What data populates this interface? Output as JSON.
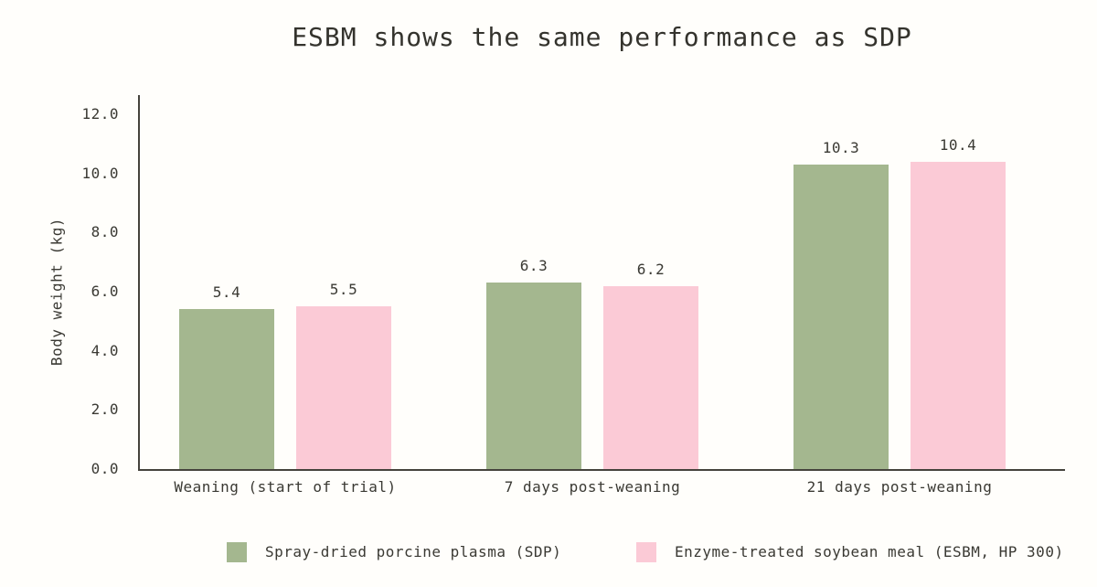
{
  "title": "ESBM shows the same performance as SDP",
  "colors": {
    "background": "#fffefb",
    "axis": "#45433c",
    "text": "#3a3933",
    "sdp_green": "#a4b78f",
    "esbm_pink": "#fbcad6"
  },
  "chart_data": {
    "type": "bar",
    "title": "ESBM shows the same performance as SDP",
    "xlabel": "",
    "ylabel": "Body weight (kg)",
    "categories": [
      "Weaning (start of trial)",
      "7 days post-weaning",
      "21 days post-weaning"
    ],
    "series": [
      {
        "name": "Spray-dried porcine plasma (SDP)",
        "color": "#a4b78f",
        "values": [
          5.4,
          6.3,
          10.3
        ],
        "labels": [
          "5.4",
          "6.3",
          "10.3"
        ]
      },
      {
        "name": "Enzyme-treated soybean meal (ESBM, HP 300)",
        "color": "#fbcad6",
        "values": [
          5.5,
          6.2,
          10.4
        ],
        "labels": [
          "5.5",
          "6.2",
          "10.4"
        ]
      }
    ],
    "ylim": [
      0,
      12
    ],
    "yticks": [
      0,
      2,
      4,
      6,
      8,
      10,
      12
    ],
    "ytick_labels": [
      "0.0",
      "2.0",
      "4.0",
      "6.0",
      "8.0",
      "10.0",
      "12.0"
    ],
    "grid": false,
    "value_labels_shown": true,
    "legend_position": "bottom"
  }
}
